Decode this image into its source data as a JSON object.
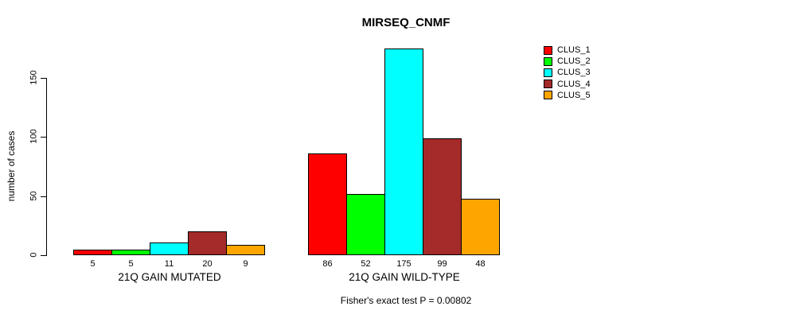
{
  "background": "#FFFFFF",
  "chart_data": {
    "type": "bar",
    "title": "MIRSEQ_CNMF",
    "ylabel": "number of cases",
    "xlabel": "",
    "ylim": [
      0,
      175
    ],
    "y_ticks": [
      0,
      50,
      100,
      150
    ],
    "grid": false,
    "legend_position": "top-right",
    "categories": [
      "21Q GAIN MUTATED",
      "21Q GAIN WILD-TYPE"
    ],
    "series": [
      {
        "name": "CLUS_1",
        "color": "#FF0000",
        "values": [
          5,
          86
        ]
      },
      {
        "name": "CLUS_2",
        "color": "#00FF00",
        "values": [
          5,
          52
        ]
      },
      {
        "name": "CLUS_3",
        "color": "#00FFFF",
        "values": [
          11,
          175
        ]
      },
      {
        "name": "CLUS_4",
        "color": "#A52A2A",
        "values": [
          20,
          99
        ]
      },
      {
        "name": "CLUS_5",
        "color": "#FFA500",
        "values": [
          9,
          48
        ]
      }
    ],
    "annotation": "Fisher's exact test P = 0.00802"
  }
}
